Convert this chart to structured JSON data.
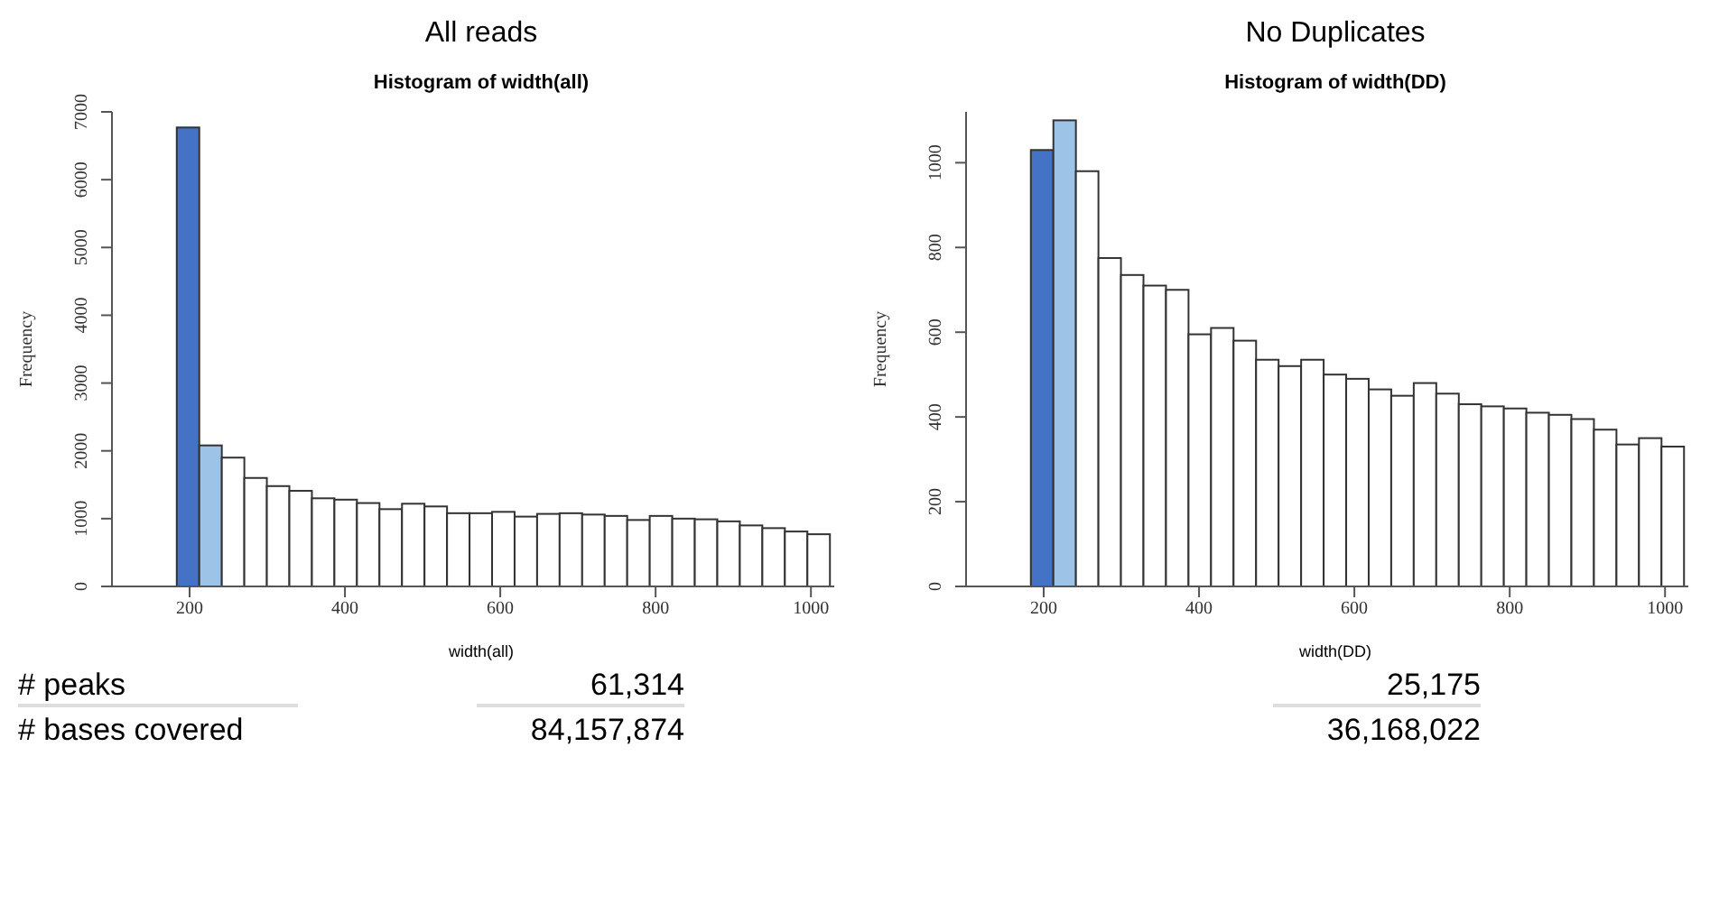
{
  "chart_data": [
    {
      "type": "histogram",
      "title": "All reads",
      "subtitle": "Histogram of width(all)",
      "xlabel": "width(all)",
      "ylabel": "Frequency",
      "bins": [
        184,
        213,
        242,
        271,
        300,
        329,
        358,
        387,
        416,
        445,
        474,
        503,
        532,
        561,
        590,
        619,
        648,
        677,
        706,
        735,
        764,
        793,
        822,
        851,
        880,
        909,
        938,
        967,
        996,
        1025
      ],
      "values": [
        6770,
        2080,
        1900,
        1600,
        1480,
        1410,
        1300,
        1280,
        1230,
        1140,
        1220,
        1180,
        1080,
        1080,
        1100,
        1030,
        1070,
        1080,
        1060,
        1040,
        980,
        1040,
        1000,
        990,
        960,
        900,
        860,
        810,
        770
      ],
      "colors": [
        "#4472c4",
        "#9dc3e6",
        "#ffffff",
        "#ffffff",
        "#ffffff",
        "#ffffff",
        "#ffffff",
        "#ffffff",
        "#ffffff",
        "#ffffff",
        "#ffffff",
        "#ffffff",
        "#ffffff",
        "#ffffff",
        "#ffffff",
        "#ffffff",
        "#ffffff",
        "#ffffff",
        "#ffffff",
        "#ffffff",
        "#ffffff",
        "#ffffff",
        "#ffffff",
        "#ffffff",
        "#ffffff",
        "#ffffff",
        "#ffffff",
        "#ffffff",
        "#ffffff"
      ],
      "xlim": [
        100,
        1030
      ],
      "xticks": [
        200,
        400,
        600,
        800,
        1000
      ],
      "ylim": [
        0,
        7000
      ],
      "yticks": [
        0,
        1000,
        2000,
        3000,
        4000,
        5000,
        6000,
        7000
      ],
      "annotations": [
        "# peaks",
        "# bases covered",
        "61,314",
        "84,157,874"
      ]
    },
    {
      "type": "histogram",
      "title": "No Duplicates",
      "subtitle": "Histogram of width(DD)",
      "xlabel": "width(DD)",
      "ylabel": "Frequency",
      "bins": [
        184,
        213,
        242,
        271,
        300,
        329,
        358,
        387,
        416,
        445,
        474,
        503,
        532,
        561,
        590,
        619,
        648,
        677,
        706,
        735,
        764,
        793,
        822,
        851,
        880,
        909,
        938,
        967,
        996,
        1025
      ],
      "values": [
        1030,
        1100,
        980,
        775,
        735,
        710,
        700,
        595,
        610,
        580,
        535,
        520,
        535,
        500,
        490,
        465,
        450,
        480,
        455,
        430,
        425,
        420,
        410,
        405,
        395,
        370,
        335,
        350,
        330
      ],
      "colors": [
        "#4472c4",
        "#9dc3e6",
        "#ffffff",
        "#ffffff",
        "#ffffff",
        "#ffffff",
        "#ffffff",
        "#ffffff",
        "#ffffff",
        "#ffffff",
        "#ffffff",
        "#ffffff",
        "#ffffff",
        "#ffffff",
        "#ffffff",
        "#ffffff",
        "#ffffff",
        "#ffffff",
        "#ffffff",
        "#ffffff",
        "#ffffff",
        "#ffffff",
        "#ffffff",
        "#ffffff",
        "#ffffff",
        "#ffffff",
        "#ffffff",
        "#ffffff",
        "#ffffff"
      ],
      "xlim": [
        100,
        1030
      ],
      "xticks": [
        200,
        400,
        600,
        800,
        1000
      ],
      "ylim": [
        0,
        1120
      ],
      "yticks": [
        0,
        200,
        400,
        600,
        800,
        1000
      ],
      "annotations": [
        "25,175",
        "36,168,022"
      ]
    }
  ]
}
